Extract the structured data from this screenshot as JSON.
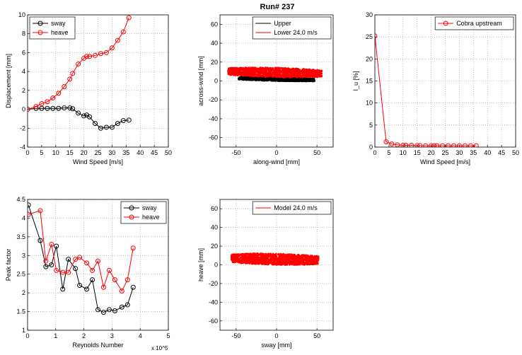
{
  "figure": {
    "title": "Run# 237"
  },
  "chart_data": [
    {
      "id": "p1",
      "type": "line",
      "xlabel": "Wind Speed [m/s]",
      "ylabel": "Displacement [mm]",
      "xlim": [
        0,
        50
      ],
      "ylim": [
        -4,
        10
      ],
      "xticks": [
        0,
        5,
        10,
        15,
        20,
        25,
        30,
        35,
        40,
        45,
        50
      ],
      "yticks": [
        -4,
        -2,
        0,
        2,
        4,
        6,
        8,
        10
      ],
      "grid": true,
      "legend": "top-left",
      "series": [
        {
          "name": "sway",
          "color": "#000000",
          "marker": "circle",
          "x": [
            0,
            3,
            5,
            7,
            9,
            11,
            13,
            15,
            16,
            18,
            20,
            21,
            22,
            24,
            26,
            28,
            30,
            32,
            34,
            36
          ],
          "y": [
            0.0,
            0.1,
            0.1,
            0.1,
            0.1,
            0.1,
            0.15,
            0.15,
            0.05,
            -0.4,
            -0.7,
            -0.6,
            -0.8,
            -1.5,
            -2.0,
            -1.9,
            -1.9,
            -1.5,
            -1.2,
            -1.15
          ]
        },
        {
          "name": "heave",
          "color": "#ff0000",
          "marker": "circle",
          "x": [
            0,
            3,
            5,
            7,
            9,
            11,
            13,
            15,
            16,
            18,
            20,
            21,
            22,
            24,
            26,
            28,
            30,
            32,
            34,
            36
          ],
          "y": [
            0.0,
            0.3,
            0.6,
            0.8,
            1.2,
            1.7,
            2.4,
            3.2,
            3.8,
            4.8,
            5.4,
            5.6,
            5.6,
            5.7,
            5.9,
            6.0,
            6.5,
            7.3,
            8.2,
            9.7
          ]
        }
      ]
    },
    {
      "id": "p2",
      "type": "scatter",
      "xlabel": "along-wind [mm]",
      "ylabel": "across-wind [mm]",
      "xlim": [
        -70,
        70
      ],
      "ylim": [
        -70,
        70
      ],
      "xticks": [
        -50,
        0,
        50
      ],
      "yticks": [
        -60,
        -40,
        -20,
        0,
        20,
        40,
        60
      ],
      "grid": true,
      "legend": "top-right",
      "series": [
        {
          "name": "Upper",
          "color": "#000000",
          "kind": "cloud",
          "x_range": [
            -47,
            47
          ],
          "y_center": 2,
          "y_halfwidth": 2,
          "tilt": -0.02
        },
        {
          "name": "Lower 24.0 m/s",
          "color": "#ff0000",
          "kind": "cloud",
          "x_range": [
            -60,
            56
          ],
          "y_center": 9,
          "y_halfwidth": 5,
          "tilt": -0.02
        }
      ]
    },
    {
      "id": "p3",
      "type": "line",
      "xlabel": "Wind Speed [m/s]",
      "ylabel": "I_u [%]",
      "xlim": [
        0,
        50
      ],
      "ylim": [
        0,
        30
      ],
      "xticks": [
        0,
        5,
        10,
        15,
        20,
        25,
        30,
        35,
        40,
        45,
        50
      ],
      "yticks": [
        0,
        5,
        10,
        15,
        20,
        25,
        30
      ],
      "grid": true,
      "legend": "top-right",
      "series": [
        {
          "name": "Cobra upstream",
          "color": "#ff0000",
          "marker": "circle",
          "x": [
            0,
            4,
            6,
            8,
            10,
            11,
            13,
            15,
            16,
            18,
            20,
            21,
            22,
            24,
            26,
            28,
            30,
            32,
            34,
            36
          ],
          "y": [
            25.2,
            1.2,
            0.7,
            0.5,
            0.4,
            0.4,
            0.4,
            0.35,
            0.35,
            0.3,
            0.3,
            0.3,
            0.3,
            0.3,
            0.3,
            0.3,
            0.3,
            0.3,
            0.3,
            0.3
          ]
        }
      ]
    },
    {
      "id": "p4",
      "type": "line",
      "xlabel": "Reynolds Number",
      "ylabel": "Peak factor",
      "x_multiplier": "x 10^5",
      "xlim": [
        0,
        5
      ],
      "ylim": [
        1,
        4.5
      ],
      "xticks": [
        0,
        1,
        2,
        3,
        4,
        5
      ],
      "yticks": [
        1,
        1.5,
        2,
        2.5,
        3,
        3.5,
        4,
        4.5
      ],
      "grid": true,
      "legend": "top-right",
      "series": [
        {
          "name": "sway",
          "color": "#000000",
          "marker": "circle",
          "x": [
            0.03,
            0.45,
            0.65,
            0.85,
            1.02,
            1.25,
            1.45,
            1.7,
            1.85,
            2.1,
            2.3,
            2.5,
            2.7,
            2.9,
            3.1,
            3.35,
            3.55,
            3.75
          ],
          "y": [
            4.35,
            3.4,
            2.7,
            2.75,
            3.25,
            2.1,
            2.9,
            2.65,
            2.2,
            2.1,
            2.35,
            1.55,
            1.48,
            1.55,
            1.52,
            1.62,
            1.68,
            2.15
          ]
        },
        {
          "name": "heave",
          "color": "#ff0000",
          "marker": "circle",
          "x": [
            0.03,
            0.45,
            0.65,
            0.85,
            1.02,
            1.25,
            1.45,
            1.7,
            1.85,
            2.1,
            2.3,
            2.5,
            2.7,
            2.9,
            3.1,
            3.35,
            3.55,
            3.75
          ],
          "y": [
            4.1,
            4.2,
            2.85,
            3.3,
            2.6,
            2.55,
            2.55,
            2.9,
            2.95,
            2.8,
            2.6,
            2.85,
            2.15,
            2.6,
            2.35,
            2.05,
            2.35,
            3.2
          ]
        }
      ]
    },
    {
      "id": "p5",
      "type": "scatter",
      "xlabel": "sway [mm]",
      "ylabel": "heave [mm]",
      "xlim": [
        -70,
        70
      ],
      "ylim": [
        -70,
        70
      ],
      "xticks": [
        -50,
        0,
        50
      ],
      "yticks": [
        -60,
        -40,
        -20,
        0,
        20,
        40,
        60
      ],
      "grid": true,
      "legend": "top-right",
      "series": [
        {
          "name": "Model 24.0 m/s",
          "color": "#ff0000",
          "kind": "cloud",
          "x_range": [
            -56,
            52
          ],
          "y_center": 6,
          "y_halfwidth": 6,
          "tilt": -0.02
        }
      ]
    }
  ]
}
